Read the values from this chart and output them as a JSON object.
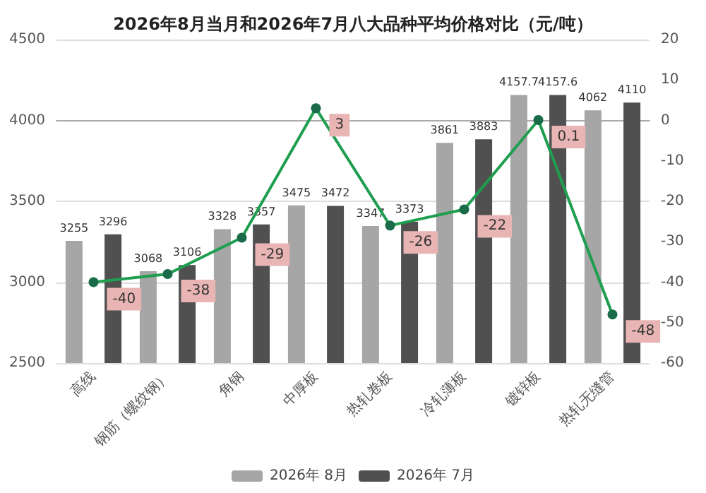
{
  "chart_data": {
    "type": "bar",
    "title": "2026年8月当月和2026年7月八大品种平均价格对比（元/吨）",
    "categories": [
      "高线",
      "钢筋（螺纹钢）",
      "角钢",
      "中厚板",
      "热轧卷板",
      "冷轧薄板",
      "镀锌板",
      "热轧无缝管"
    ],
    "series": [
      {
        "name": "2026年 8月",
        "color": "#a6a6a6",
        "values": [
          3255,
          3068,
          3328,
          3475,
          3347,
          3861,
          4157.7,
          4062
        ]
      },
      {
        "name": "2026年 7月",
        "color": "#505050",
        "values": [
          3296,
          3106,
          3357,
          3472,
          3373,
          3883,
          4157.6,
          4110
        ]
      },
      {
        "type": "line",
        "axis": "y2",
        "color": "#1f9e50",
        "values": [
          -40,
          -38,
          -29,
          3,
          -26,
          -22,
          0.1,
          -48
        ]
      }
    ],
    "ylim": [
      2500,
      4500
    ],
    "yticks": [
      2500,
      3000,
      3500,
      4000,
      4500
    ],
    "y2lim": [
      -60,
      20
    ],
    "y2ticks": [
      -60,
      -50,
      -40,
      -30,
      -20,
      -10,
      0,
      10,
      20
    ],
    "grid": "y",
    "legend": "bottom",
    "data_labels": true,
    "marker": "circle"
  }
}
